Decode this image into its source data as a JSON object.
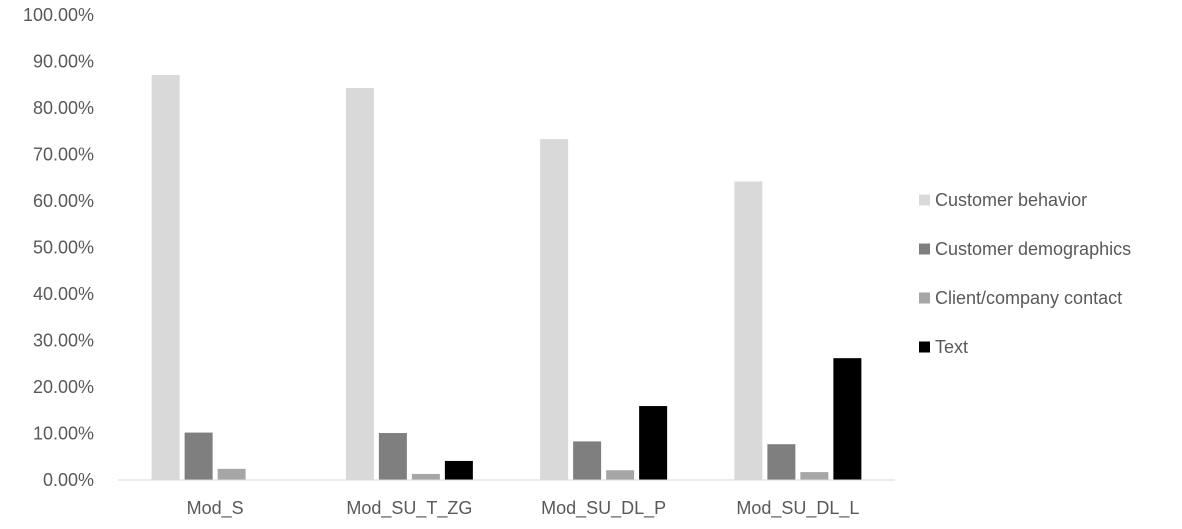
{
  "chart_data": {
    "type": "bar",
    "title": "",
    "xlabel": "",
    "ylabel": "",
    "ylim": [
      0,
      1
    ],
    "y_ticks": [
      "0.00%",
      "10.00%",
      "20.00%",
      "30.00%",
      "40.00%",
      "50.00%",
      "60.00%",
      "70.00%",
      "80.00%",
      "90.00%",
      "100.00%"
    ],
    "categories": [
      "Mod_S",
      "Mod_SU_T_ZG",
      "Mod_SU_DL_P",
      "Mod_SU_DL_L"
    ],
    "series": [
      {
        "name": "Customer behavior",
        "color": "#d9d9d9",
        "values": [
          0.871,
          0.843,
          0.733,
          0.642
        ]
      },
      {
        "name": "Customer demographics",
        "color": "#7f7f7f",
        "values": [
          0.102,
          0.101,
          0.083,
          0.077
        ]
      },
      {
        "name": "Client/company contact",
        "color": "#a6a6a6",
        "values": [
          0.024,
          0.013,
          0.021,
          0.017
        ]
      },
      {
        "name": "Text",
        "color": "#000000",
        "values": [
          0.0,
          0.041,
          0.159,
          0.262
        ]
      }
    ],
    "grid": false,
    "legend_position": "right"
  }
}
